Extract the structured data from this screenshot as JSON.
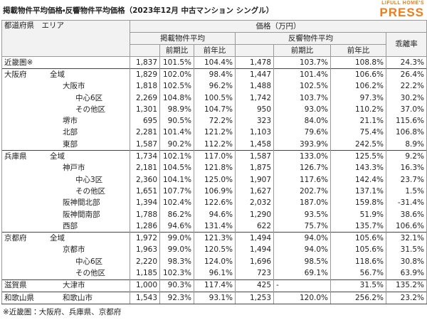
{
  "header": {
    "title": "掲載物件平均価格・反響物件平均価格（2023年12月 中古マンション シングル）",
    "logo_top": "LIFULL HOME'S",
    "logo_main": "PRESS"
  },
  "table": {
    "head": {
      "area": "都道府県　エリア",
      "price": "価格（万円）",
      "listed": "掲載物件平均",
      "inquired": "反響物件平均",
      "gap": "乖離率",
      "qoq": "前期比",
      "yoy": "前年比"
    },
    "rows": [
      {
        "pref": "近畿圏※",
        "cells": [
          "1,837",
          "101.5%",
          "104.4%",
          "1,478",
          "103.7%",
          "108.8%",
          "24.3%"
        ]
      },
      {
        "pref": "大阪府",
        "area": "全域",
        "cells": [
          "1,829",
          "102.0%",
          "98.4%",
          "1,447",
          "101.4%",
          "106.6%",
          "26.4%"
        ]
      },
      {
        "area": "大阪市",
        "cells": [
          "1,818",
          "102.5%",
          "96.2%",
          "1,488",
          "102.5%",
          "106.2%",
          "22.2%"
        ]
      },
      {
        "area": "中心6区",
        "cells": [
          "2,269",
          "104.8%",
          "100.5%",
          "1,742",
          "103.7%",
          "97.3%",
          "30.2%"
        ]
      },
      {
        "area": "その他区",
        "cells": [
          "1,301",
          "98.9%",
          "104.7%",
          "950",
          "93.0%",
          "110.2%",
          "37.0%"
        ]
      },
      {
        "area": "堺市",
        "cells": [
          "695",
          "90.5%",
          "72.2%",
          "323",
          "84.0%",
          "21.1%",
          "115.6%"
        ]
      },
      {
        "area": "北部",
        "cells": [
          "2,281",
          "101.4%",
          "121.2%",
          "1,103",
          "79.6%",
          "75.4%",
          "106.8%"
        ]
      },
      {
        "area": "東部",
        "cells": [
          "1,587",
          "90.2%",
          "112.2%",
          "1,458",
          "393.9%",
          "242.5%",
          "8.9%"
        ]
      },
      {
        "pref": "兵庫県",
        "area": "全域",
        "cells": [
          "1,734",
          "102.1%",
          "117.0%",
          "1,587",
          "133.0%",
          "125.5%",
          "9.2%"
        ]
      },
      {
        "area": "神戸市",
        "cells": [
          "2,181",
          "104.5%",
          "121.8%",
          "1,875",
          "126.7%",
          "143.3%",
          "16.3%"
        ]
      },
      {
        "area": "中心3区",
        "cells": [
          "2,360",
          "104.1%",
          "125.0%",
          "1,907",
          "117.6%",
          "142.4%",
          "23.7%"
        ]
      },
      {
        "area": "その他区",
        "cells": [
          "1,651",
          "107.7%",
          "106.9%",
          "1,627",
          "202.7%",
          "137.1%",
          "1.5%"
        ]
      },
      {
        "area": "阪神間北部",
        "cells": [
          "1,394",
          "102.4%",
          "122.6%",
          "2,032",
          "187.0%",
          "159.8%",
          "-31.4%"
        ]
      },
      {
        "area": "阪神間南部",
        "cells": [
          "1,788",
          "86.2%",
          "94.6%",
          "1,290",
          "93.5%",
          "51.9%",
          "38.6%"
        ]
      },
      {
        "area": "西部",
        "cells": [
          "1,286",
          "94.6%",
          "131.4%",
          "622",
          "75.7%",
          "135.7%",
          "106.6%"
        ]
      },
      {
        "pref": "京都府",
        "area": "全域",
        "cells": [
          "1,972",
          "99.0%",
          "121.3%",
          "1,494",
          "94.0%",
          "105.6%",
          "32.1%"
        ]
      },
      {
        "area": "京都市",
        "cells": [
          "1,963",
          "99.0%",
          "120.5%",
          "1,494",
          "94.0%",
          "105.6%",
          "31.5%"
        ]
      },
      {
        "area": "中心6区",
        "cells": [
          "2,220",
          "98.3%",
          "124.0%",
          "1,696",
          "98.5%",
          "118.6%",
          "30.8%"
        ]
      },
      {
        "area": "その他区",
        "cells": [
          "1,185",
          "102.3%",
          "96.1%",
          "723",
          "69.1%",
          "56.7%",
          "63.9%"
        ]
      },
      {
        "pref": "滋賀県",
        "area": "大津市",
        "cells": [
          "1,000",
          "90.3%",
          "117.4%",
          "425",
          "-",
          "31.5%",
          "135.2%"
        ]
      },
      {
        "pref": "和歌山県",
        "area": "和歌山市",
        "cells": [
          "1,543",
          "92.3%",
          "93.1%",
          "1,253",
          "120.0%",
          "256.2%",
          "23.2%"
        ]
      }
    ]
  },
  "footnote": "※近畿圏：大阪府、兵庫県、京都府"
}
